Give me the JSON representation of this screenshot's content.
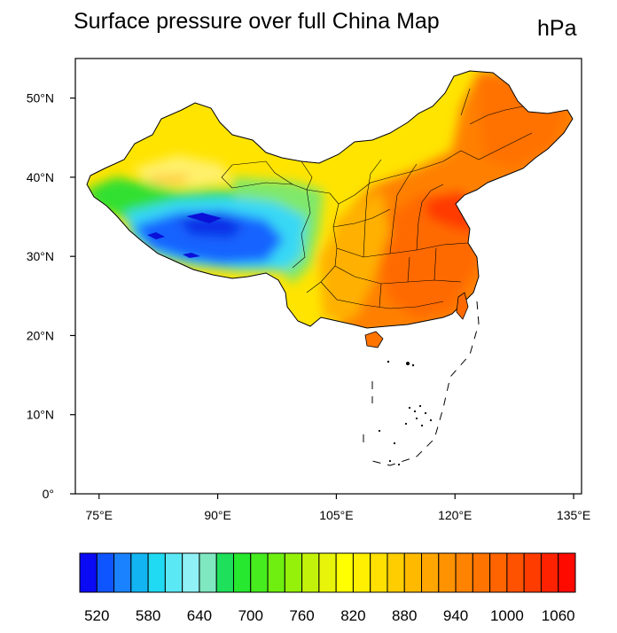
{
  "title": "Surface pressure over full China Map",
  "units": "hPa",
  "map": {
    "projection": "equirectangular",
    "lon_range": [
      72,
      136
    ],
    "lat_range": [
      0,
      55
    ],
    "lon_ticks": [
      {
        "value": 75,
        "label": "75°E"
      },
      {
        "value": 90,
        "label": "90°E"
      },
      {
        "value": 105,
        "label": "105°E"
      },
      {
        "value": 120,
        "label": "120°E"
      },
      {
        "value": 135,
        "label": "135°E"
      }
    ],
    "lat_ticks": [
      {
        "value": 0,
        "label": "0°"
      },
      {
        "value": 10,
        "label": "10°N"
      },
      {
        "value": 20,
        "label": "20°N"
      },
      {
        "value": 30,
        "label": "30°N"
      },
      {
        "value": 40,
        "label": "40°N"
      },
      {
        "value": 50,
        "label": "50°N"
      }
    ],
    "field": "surface pressure (hPa), filled contours over mainland China; low over Tibetan Plateau (~520–600), high over eastern lowlands (~1000–1060)"
  },
  "colorbar": {
    "levels": [
      520,
      540,
      560,
      580,
      600,
      620,
      640,
      660,
      680,
      700,
      720,
      740,
      760,
      780,
      800,
      820,
      840,
      860,
      880,
      900,
      920,
      940,
      960,
      980,
      1000,
      1020,
      1040,
      1060
    ],
    "colors": [
      "#0a0af5",
      "#0f55ff",
      "#1a82ff",
      "#12b5f2",
      "#20d9f2",
      "#5be8f5",
      "#8ff0f5",
      "#7fe8c0",
      "#1ee05a",
      "#26e82e",
      "#46ec1e",
      "#6eef10",
      "#95f00a",
      "#c3f20a",
      "#e8f50a",
      "#ffff00",
      "#ffef00",
      "#ffe000",
      "#ffcd00",
      "#ffba00",
      "#ffa600",
      "#ff9200",
      "#ff8200",
      "#ff7300",
      "#ff6400",
      "#ff5200",
      "#ff3c00",
      "#ff2200",
      "#ff0a00"
    ],
    "label_values": [
      520,
      580,
      640,
      700,
      760,
      820,
      880,
      940,
      1000,
      1060
    ],
    "labels": [
      "520",
      "580",
      "640",
      "700",
      "760",
      "820",
      "880",
      "940",
      "1000",
      "1060"
    ]
  }
}
